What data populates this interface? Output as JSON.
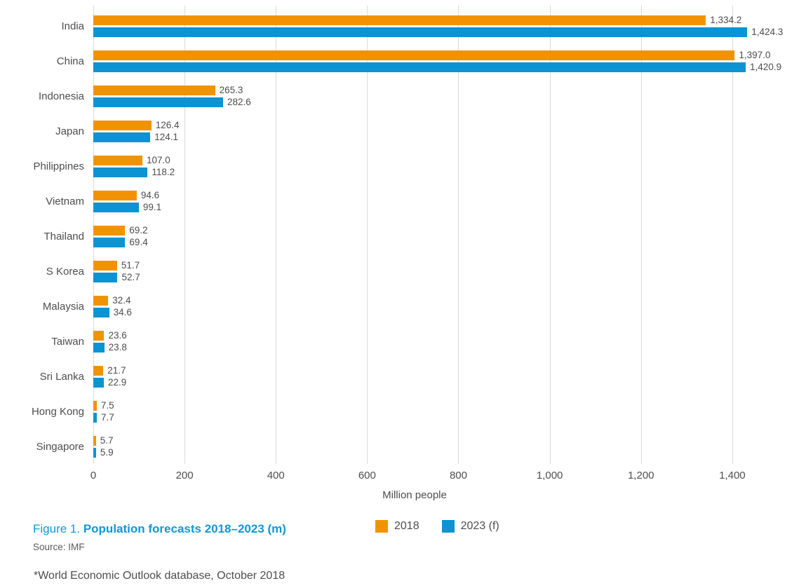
{
  "caption": {
    "figure_label": "Figure 1.",
    "title": "Population forecasts 2018–2023 (m)",
    "source": "Source: IMF"
  },
  "footnote": "*World Economic Outlook database, October 2018",
  "colors": {
    "series_2018": "#F19300",
    "series_2023": "#0C93D2",
    "caption_blue": "#0F97D9",
    "gridline": "#DADADA",
    "text": "#4D4D4F"
  },
  "chart_data": {
    "type": "bar",
    "orientation": "horizontal",
    "title": "Population forecasts 2018–2023 (m)",
    "xlabel": "Million people",
    "categories": [
      "India",
      "China",
      "Indonesia",
      "Japan",
      "Philippines",
      "Vietnam",
      "Thailand",
      "S Korea",
      "Malaysia",
      "Taiwan",
      "Sri Lanka",
      "Hong Kong",
      "Singapore"
    ],
    "series": [
      {
        "name": "2018",
        "color": "#F19300",
        "values": [
          1334.2,
          1397.0,
          265.3,
          126.4,
          107.0,
          94.6,
          69.2,
          51.7,
          32.4,
          23.6,
          21.7,
          7.5,
          5.7
        ],
        "labels": [
          "1,334.2",
          "1,397.0",
          "265.3",
          "126.4",
          "107.0",
          "94.6",
          "69.2",
          "51.7",
          "32.4",
          "23.6",
          "21.7",
          "7.5",
          "5.7"
        ]
      },
      {
        "name": "2023 (f)",
        "color": "#0C93D2",
        "values": [
          1424.3,
          1420.9,
          282.6,
          124.1,
          118.2,
          99.1,
          69.4,
          52.7,
          34.6,
          23.8,
          22.9,
          7.7,
          5.9
        ],
        "labels": [
          "1,424.3",
          "1,420.9",
          "282.6",
          "124.1",
          "118.2",
          "99.1",
          "69.4",
          "52.7",
          "34.6",
          "23.8",
          "22.9",
          "7.7",
          "5.9"
        ]
      }
    ],
    "xticks": [
      0,
      200,
      400,
      600,
      800,
      1000,
      1200,
      1400
    ],
    "xtick_labels": [
      "0",
      "200",
      "400",
      "600",
      "800",
      "1,000",
      "1,200",
      "1,400"
    ],
    "xlim": [
      0,
      1537
    ],
    "grid": "vertical",
    "legend_position": "bottom",
    "value_labels": true
  }
}
